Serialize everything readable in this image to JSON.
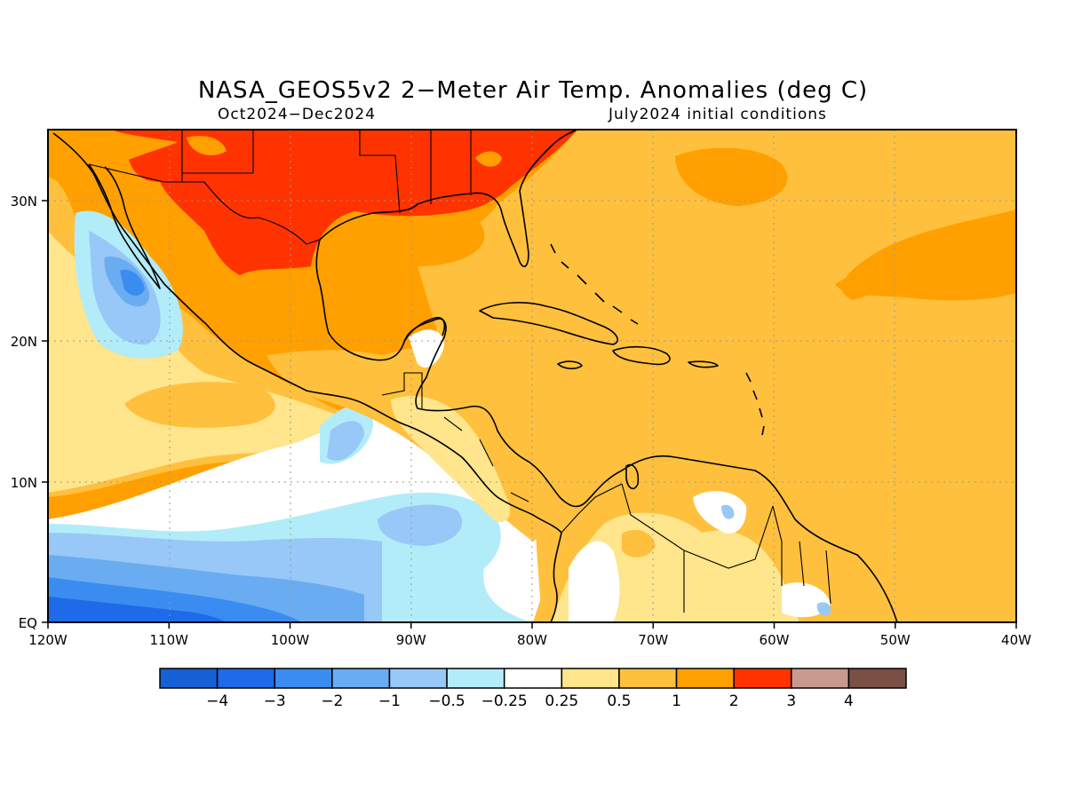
{
  "title": "NASA_GEOS5v2 2−Meter Air Temp. Anomalies (deg C)",
  "subtitle_left": "Oct2024−Dec2024",
  "subtitle_right": "July2024 initial conditions",
  "x_ticks": [
    "120W",
    "110W",
    "100W",
    "90W",
    "80W",
    "70W",
    "60W",
    "50W",
    "40W"
  ],
  "y_ticks": [
    "30N",
    "20N",
    "10N",
    "EQ"
  ],
  "colorbar": {
    "colors": [
      "#1660d6",
      "#1e6ae8",
      "#3a8cf0",
      "#6aacf2",
      "#98c8f7",
      "#b2ecf9",
      "#ffffff",
      "#ffe58c",
      "#ffc03d",
      "#ffa000",
      "#ff3300",
      "#c89a8f",
      "#7a5045"
    ],
    "labels": [
      "−4",
      "−3",
      "−2",
      "−1",
      "−0.5",
      "−0.25",
      "0.25",
      "0.5",
      "1",
      "2",
      "3",
      "4"
    ]
  }
}
